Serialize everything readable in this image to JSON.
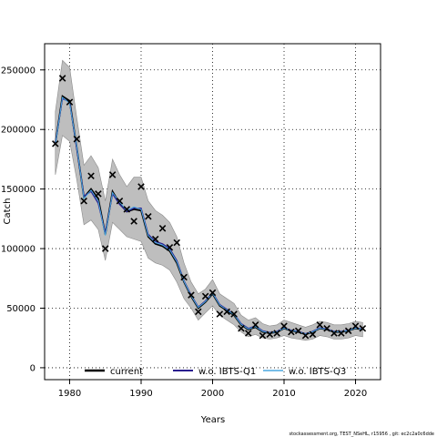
{
  "chart_data": {
    "type": "line",
    "xlabel": "Years",
    "ylabel": "Catch",
    "xlim": [
      1976.5,
      2023.5
    ],
    "ylim": [
      -10000,
      272000
    ],
    "x_ticks": [
      1980,
      1990,
      2000,
      2010,
      2020
    ],
    "y_ticks": [
      0,
      50000,
      100000,
      150000,
      200000,
      250000
    ],
    "x_tick_labels": [
      "1980",
      "1990",
      "2000",
      "2010",
      "2020"
    ],
    "y_tick_labels": [
      "0",
      "50000",
      "100000",
      "150000",
      "200000",
      "250000"
    ],
    "grid": true,
    "legend_position": "bottom",
    "years": [
      1978,
      1979,
      1980,
      1981,
      1982,
      1983,
      1984,
      1985,
      1986,
      1987,
      1988,
      1989,
      1990,
      1991,
      1992,
      1993,
      1994,
      1995,
      1996,
      1997,
      1998,
      1999,
      2000,
      2001,
      2002,
      2003,
      2004,
      2005,
      2006,
      2007,
      2008,
      2009,
      2010,
      2011,
      2012,
      2013,
      2014,
      2015,
      2016,
      2017,
      2018,
      2019,
      2020,
      2021
    ],
    "series": [
      {
        "name": "current",
        "color": "#000000",
        "values": [
          188000,
          228000,
          224000,
          185000,
          143000,
          150000,
          142000,
          112000,
          148000,
          138000,
          131000,
          133000,
          132000,
          110000,
          104000,
          102000,
          98000,
          88000,
          72000,
          60000,
          50000,
          55000,
          62000,
          52000,
          48000,
          44000,
          36000,
          32000,
          34000,
          30000,
          29000,
          30000,
          33000,
          31000,
          30000,
          28000,
          30000,
          33000,
          32000,
          30000,
          30000,
          31000,
          33000,
          32000
        ]
      },
      {
        "name": "w.o. IBTS-Q1",
        "color": "#2a1f8f",
        "values": [
          188000,
          226000,
          223000,
          184000,
          144000,
          148000,
          138000,
          113000,
          146000,
          137000,
          131000,
          134000,
          134000,
          112000,
          106000,
          104000,
          100000,
          90000,
          73000,
          61000,
          51000,
          56000,
          63000,
          53000,
          49000,
          45000,
          37000,
          33000,
          35000,
          31000,
          29500,
          30500,
          33500,
          31500,
          30500,
          28500,
          30500,
          33500,
          32500,
          30500,
          30500,
          31500,
          33500,
          32500
        ]
      },
      {
        "name": "w.o. IBTS-Q3",
        "color": "#4aa8e0",
        "values": [
          187000,
          227000,
          222000,
          186000,
          142000,
          149000,
          140000,
          111000,
          147000,
          139000,
          132000,
          135000,
          133000,
          111000,
          105000,
          103000,
          99000,
          89000,
          72500,
          60500,
          50500,
          55500,
          62500,
          52500,
          48500,
          44500,
          36500,
          32500,
          34500,
          30500,
          29200,
          30200,
          33200,
          31200,
          30200,
          28200,
          30200,
          33200,
          32200,
          30200,
          30200,
          31200,
          33200,
          32200
        ]
      }
    ],
    "confidence_band": {
      "color": "#bebebe",
      "upper": [
        215000,
        258000,
        252000,
        210000,
        170000,
        178000,
        168000,
        140000,
        175000,
        162000,
        152000,
        160000,
        160000,
        140000,
        132000,
        128000,
        122000,
        110000,
        88000,
        72000,
        62000,
        66000,
        74000,
        62000,
        58000,
        54000,
        44000,
        40000,
        42000,
        37000,
        35000,
        36000,
        40000,
        38000,
        36000,
        34000,
        36000,
        39000,
        38000,
        36000,
        36000,
        37000,
        39000,
        38000
      ],
      "lower": [
        162000,
        195000,
        190000,
        158000,
        120000,
        124000,
        116000,
        90000,
        122000,
        116000,
        110000,
        108000,
        106000,
        92000,
        88000,
        86000,
        82000,
        72000,
        58000,
        50000,
        40000,
        46000,
        52000,
        44000,
        40000,
        36000,
        30000,
        26000,
        28000,
        25000,
        24000,
        25000,
        27000,
        25000,
        24000,
        23000,
        24000,
        27000,
        26000,
        24000,
        24000,
        25000,
        27000,
        26000
      ]
    },
    "observed": {
      "marker": "x",
      "color": "#000000",
      "values": [
        188000,
        243000,
        223000,
        192000,
        140000,
        161000,
        146000,
        100000,
        162000,
        140000,
        133000,
        123000,
        152000,
        127000,
        108000,
        117000,
        101000,
        105000,
        76000,
        61000,
        47000,
        60000,
        63000,
        45000,
        47000,
        45000,
        33000,
        29000,
        36000,
        27000,
        28000,
        29000,
        35000,
        30000,
        31000,
        27000,
        28000,
        36000,
        33000,
        29000,
        29000,
        31000,
        35000,
        33000
      ]
    }
  },
  "footer": "stockassessment.org, TEST_NSeHL, r15956 ,  git: ec2c2a0c6dde"
}
